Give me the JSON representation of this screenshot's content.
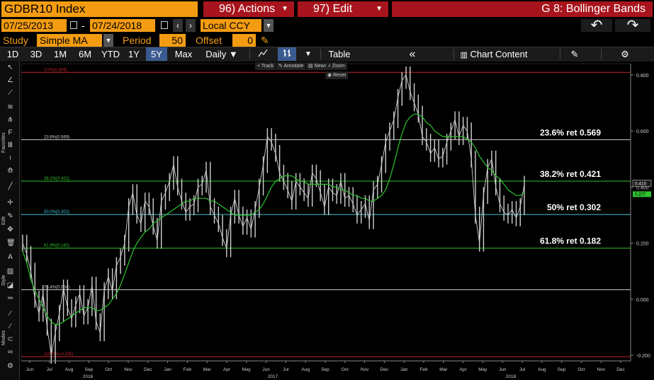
{
  "header": {
    "ticker": "GDBR10 Index",
    "actions_label": "96) Actions",
    "edit_label": "97) Edit",
    "title": "G 8: Bollinger Bands"
  },
  "date_range": {
    "start": "07/25/2013",
    "separator": "-",
    "end": "07/24/2018",
    "currency": "Local CCY"
  },
  "study": {
    "label": "Study",
    "value": "Simple MA",
    "period_label": "Period",
    "period_value": "50",
    "offset_label": "Offset",
    "offset_value": "0"
  },
  "toolbar": {
    "periods": [
      "1D",
      "3D",
      "1M",
      "6M",
      "YTD",
      "1Y",
      "5Y",
      "Max"
    ],
    "selected_period": "5Y",
    "frequency": "Daily",
    "table_label": "Table",
    "chart_content_label": "Chart Content"
  },
  "mini_toolbar": {
    "track": "Track",
    "annotate": "Annotate",
    "news": "News",
    "zoom": "Zoom",
    "reset": "Reset"
  },
  "left_toolbar": {
    "favorites_label": "Favorites",
    "edit_label": "Edit",
    "style_label": "Style",
    "modes_label": "Modes"
  },
  "colors": {
    "accent_orange": "#f39c12",
    "header_red": "#a8141d",
    "price_line": "#d0d0d0",
    "ma_line": "#2ec52e",
    "fib_0": "#c0242c",
    "fib_236": "#cfcfcf",
    "fib_382": "#2ec52e",
    "fib_50": "#3fc6d8",
    "fib_618": "#2ec52e",
    "fib_764": "#cfcfcf",
    "fib_100": "#c0242c"
  },
  "chart_data": {
    "type": "line",
    "title": "",
    "ylim": [
      -0.22,
      0.84
    ],
    "y_ticks": [
      "-0.200",
      "0.000",
      "0.200",
      "0.400",
      "0.600",
      "0.800"
    ],
    "x_ticks": [
      "Jun",
      "Jul",
      "Aug",
      "Sep",
      "Oct",
      "Nov",
      "Dec",
      "Jan",
      "Feb",
      "Mar",
      "Apr",
      "May",
      "Jun",
      "Jul",
      "Aug",
      "Sep",
      "Oct",
      "Nov",
      "Dec",
      "Jan",
      "Feb",
      "Mar",
      "Apr",
      "May",
      "Jun",
      "Jul",
      "Aug",
      "Sep",
      "Oct",
      "Nov",
      "Dec"
    ],
    "year_labels": [
      "2016",
      "2017",
      "2018"
    ],
    "last_value_label": "0.410",
    "last_ma_label": "0.377",
    "fib_levels": [
      {
        "label": "0.0%(0.809)",
        "value": 0.809,
        "color_key": "fib_0",
        "callout": ""
      },
      {
        "label": "23.6%(0.569)",
        "value": 0.569,
        "color_key": "fib_236",
        "callout": "23.6% ret 0.569"
      },
      {
        "label": "38.2%(0.421)",
        "value": 0.421,
        "color_key": "fib_382",
        "callout": "38.2% ret 0.421"
      },
      {
        "label": "50.0%(0.302)",
        "value": 0.302,
        "color_key": "fib_50",
        "callout": "50% ret 0.302"
      },
      {
        "label": "61.8%(0.182)",
        "value": 0.182,
        "color_key": "fib_618",
        "callout": "61.8% ret 0.182"
      },
      {
        "label": "76.4%(0.034)",
        "value": 0.034,
        "color_key": "fib_764",
        "callout": ""
      },
      {
        "label": "100.0%(-0.205)",
        "value": -0.205,
        "color_key": "fib_100",
        "callout": ""
      }
    ],
    "series": [
      {
        "values": [
          0.2,
          0.16,
          0.1,
          0.0,
          -0.05,
          0.02,
          -0.1,
          -0.2,
          -0.12,
          -0.05,
          0.04,
          -0.03,
          -0.07,
          -0.02,
          0.02,
          -0.06,
          -0.03,
          0.05,
          -0.08,
          -0.12,
          0.03,
          0.08,
          0.03,
          0.12,
          0.15,
          0.2,
          0.33,
          0.38,
          0.3,
          0.27,
          0.35,
          0.33,
          0.26,
          0.21,
          0.35,
          0.38,
          0.42,
          0.48,
          0.4,
          0.35,
          0.31,
          0.33,
          0.34,
          0.4,
          0.41,
          0.46,
          0.33,
          0.3,
          0.27,
          0.22,
          0.18,
          0.3,
          0.36,
          0.3,
          0.26,
          0.29,
          0.25,
          0.32,
          0.4,
          0.48,
          0.58,
          0.56,
          0.52,
          0.45,
          0.42,
          0.39,
          0.35,
          0.42,
          0.4,
          0.38,
          0.36,
          0.45,
          0.43,
          0.38,
          0.33,
          0.4,
          0.38,
          0.37,
          0.42,
          0.36,
          0.37,
          0.34,
          0.3,
          0.32,
          0.34,
          0.28,
          0.39,
          0.41,
          0.48,
          0.56,
          0.6,
          0.64,
          0.72,
          0.78,
          0.8,
          0.74,
          0.7,
          0.66,
          0.58,
          0.56,
          0.52,
          0.54,
          0.5,
          0.51,
          0.56,
          0.6,
          0.64,
          0.58,
          0.62,
          0.6,
          0.5,
          0.3,
          0.2,
          0.37,
          0.47,
          0.5,
          0.4,
          0.34,
          0.31,
          0.3,
          0.32,
          0.29,
          0.33,
          0.41
        ]
      },
      {
        "values": [
          0.17,
          0.13,
          0.07,
          0.03,
          0.0,
          -0.03,
          -0.06,
          -0.08,
          -0.09,
          -0.09,
          -0.08,
          -0.07,
          -0.06,
          -0.05,
          -0.04,
          -0.03,
          -0.03,
          -0.03,
          -0.04,
          -0.04,
          -0.03,
          -0.02,
          0.0,
          0.02,
          0.05,
          0.09,
          0.13,
          0.17,
          0.2,
          0.22,
          0.24,
          0.25,
          0.27,
          0.28,
          0.29,
          0.3,
          0.31,
          0.32,
          0.33,
          0.34,
          0.35,
          0.35,
          0.36,
          0.36,
          0.36,
          0.36,
          0.35,
          0.35,
          0.34,
          0.33,
          0.32,
          0.31,
          0.3,
          0.3,
          0.3,
          0.3,
          0.3,
          0.31,
          0.32,
          0.34,
          0.37,
          0.4,
          0.42,
          0.43,
          0.44,
          0.44,
          0.44,
          0.43,
          0.42,
          0.42,
          0.41,
          0.41,
          0.41,
          0.41,
          0.41,
          0.41,
          0.4,
          0.4,
          0.39,
          0.39,
          0.38,
          0.37,
          0.37,
          0.36,
          0.36,
          0.35,
          0.35,
          0.36,
          0.37,
          0.39,
          0.43,
          0.48,
          0.54,
          0.59,
          0.63,
          0.65,
          0.66,
          0.66,
          0.65,
          0.63,
          0.62,
          0.6,
          0.59,
          0.58,
          0.58,
          0.58,
          0.58,
          0.58,
          0.58,
          0.57,
          0.56,
          0.54,
          0.51,
          0.49,
          0.47,
          0.46,
          0.44,
          0.43,
          0.41,
          0.39,
          0.38,
          0.37,
          0.37,
          0.38
        ]
      }
    ]
  }
}
